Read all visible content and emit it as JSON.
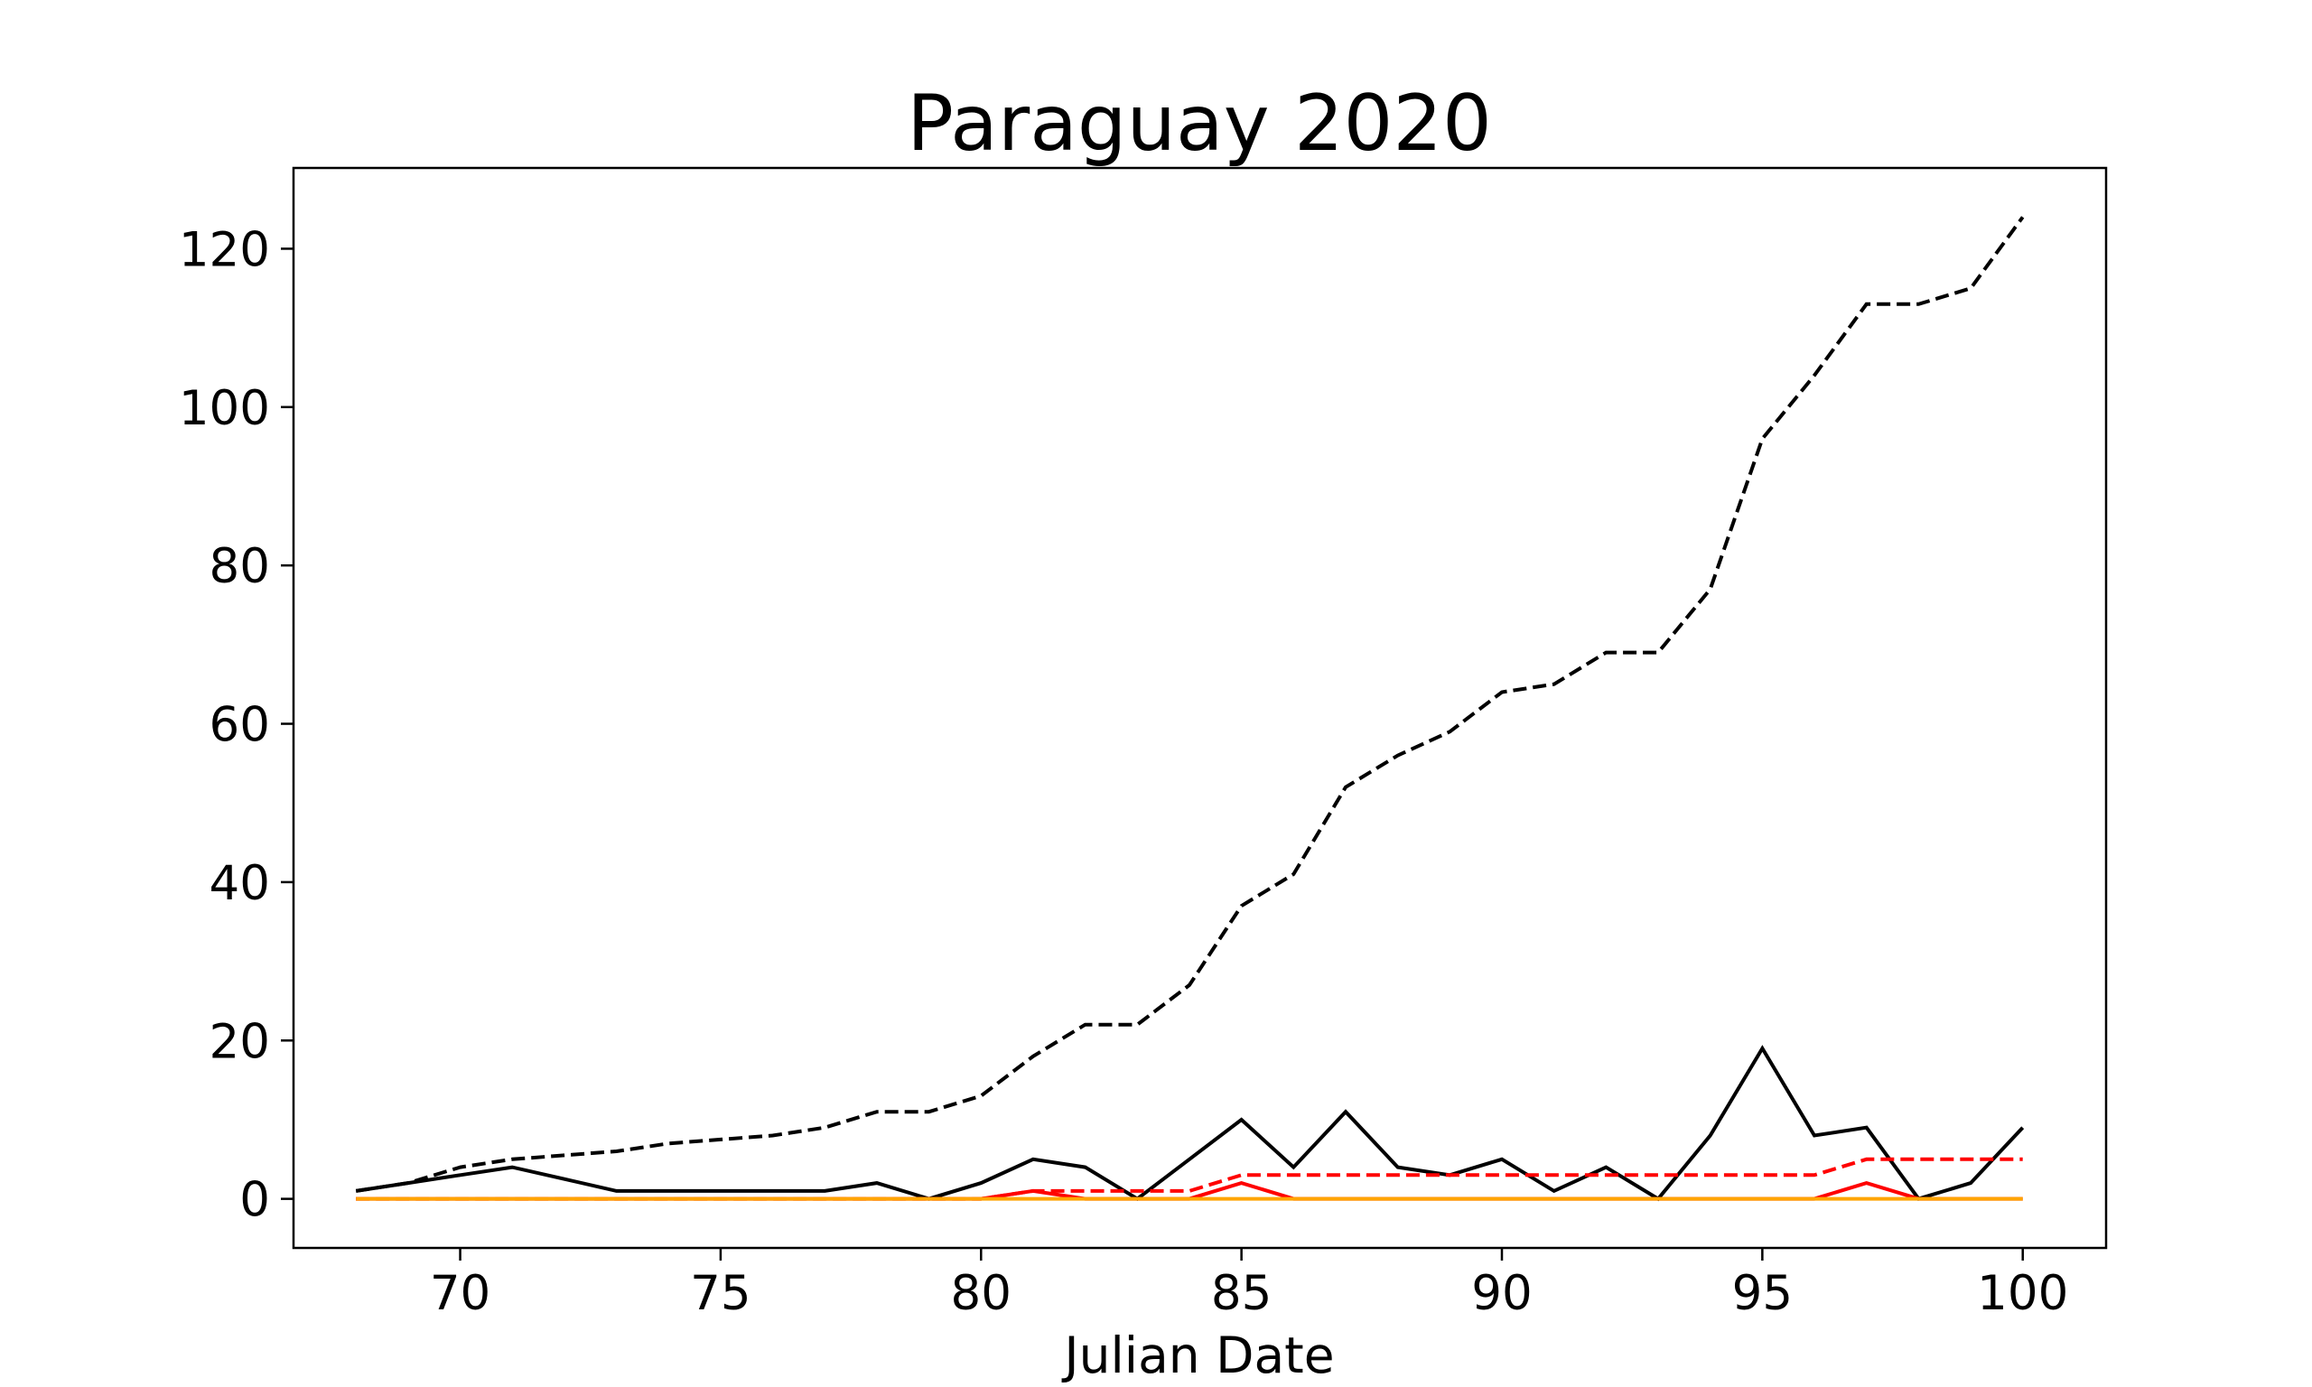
{
  "chart_data": {
    "type": "line",
    "title": "Paraguay 2020",
    "xlabel": "Julian Date",
    "ylabel": "",
    "xlim": [
      66.8,
      101.6
    ],
    "ylim": [
      -6.2,
      130.2
    ],
    "xticks": [
      70,
      75,
      80,
      85,
      90,
      95,
      100
    ],
    "yticks": [
      0,
      20,
      40,
      60,
      80,
      100,
      120
    ],
    "grid": false,
    "x": [
      68,
      69,
      70,
      71,
      72,
      73,
      74,
      75,
      76,
      77,
      78,
      79,
      80,
      81,
      82,
      83,
      84,
      85,
      86,
      87,
      88,
      89,
      90,
      91,
      92,
      93,
      94,
      95,
      96,
      97,
      98,
      99,
      100
    ],
    "series": [
      {
        "color": "#000000",
        "dash": "dashed",
        "values": [
          1,
          2,
          4,
          5,
          5.5,
          6,
          7,
          7.5,
          8,
          9,
          11,
          11,
          13,
          18,
          22,
          22,
          27,
          37,
          41,
          52,
          56,
          59,
          64,
          65,
          69,
          69,
          77,
          96,
          104,
          113,
          113,
          115,
          124
        ]
      },
      {
        "color": "#000000",
        "dash": "solid",
        "values": [
          1,
          2,
          3,
          4,
          2.5,
          1,
          1,
          1,
          1,
          1,
          2,
          0,
          2,
          5,
          4,
          0,
          5,
          10,
          4,
          11,
          4,
          3,
          5,
          1,
          4,
          0,
          8,
          19,
          8,
          9,
          0,
          2,
          9
        ]
      },
      {
        "color": "#ff0000",
        "dash": "dashed",
        "values": [
          0,
          0,
          0,
          0,
          0,
          0,
          0,
          0,
          0,
          0,
          0,
          0,
          0,
          1,
          1,
          1,
          1,
          3,
          3,
          3,
          3,
          3,
          3,
          3,
          3,
          3,
          3,
          3,
          3,
          5,
          5,
          5,
          5
        ]
      },
      {
        "color": "#ff0000",
        "dash": "solid",
        "values": [
          0,
          0,
          0,
          0,
          0,
          0,
          0,
          0,
          0,
          0,
          0,
          0,
          0,
          1,
          0,
          0,
          0,
          2,
          0,
          0,
          0,
          0,
          0,
          0,
          0,
          0,
          0,
          0,
          0,
          2,
          0,
          0,
          0
        ]
      },
      {
        "color": "#ffa500",
        "dash": "solid",
        "values": [
          0,
          0,
          0,
          0,
          0,
          0,
          0,
          0,
          0,
          0,
          0,
          0,
          0,
          0,
          0,
          0,
          0,
          0,
          0,
          0,
          0,
          0,
          0,
          0,
          0,
          0,
          0,
          0,
          0,
          0,
          0,
          0,
          0
        ]
      }
    ]
  }
}
